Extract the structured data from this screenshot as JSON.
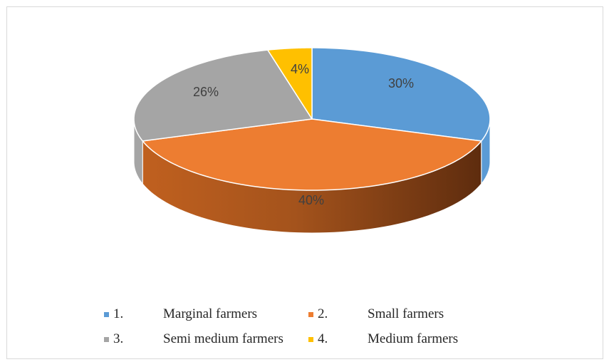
{
  "chart_data": {
    "type": "pie",
    "style": "3d",
    "categories": [
      "1. Marginal farmers",
      "2. Small farmers",
      "3. Semi medium farmers",
      "4. Medium farmers"
    ],
    "values": [
      30,
      40,
      26,
      4
    ],
    "labels": [
      "30%",
      "40%",
      "26%",
      "4%"
    ],
    "colors": [
      "#5B9BD5",
      "#ED7D31",
      "#A5A5A5",
      "#FFC000"
    ],
    "legend_position": "bottom"
  },
  "legend": [
    {
      "num": "1.",
      "label": "Marginal farmers",
      "color": "#5B9BD5"
    },
    {
      "num": "2.",
      "label": "Small farmers",
      "color": "#ED7D31"
    },
    {
      "num": "3.",
      "label": "Semi medium farmers",
      "color": "#A5A5A5"
    },
    {
      "num": "4.",
      "label": "Medium farmers",
      "color": "#FFC000"
    }
  ]
}
